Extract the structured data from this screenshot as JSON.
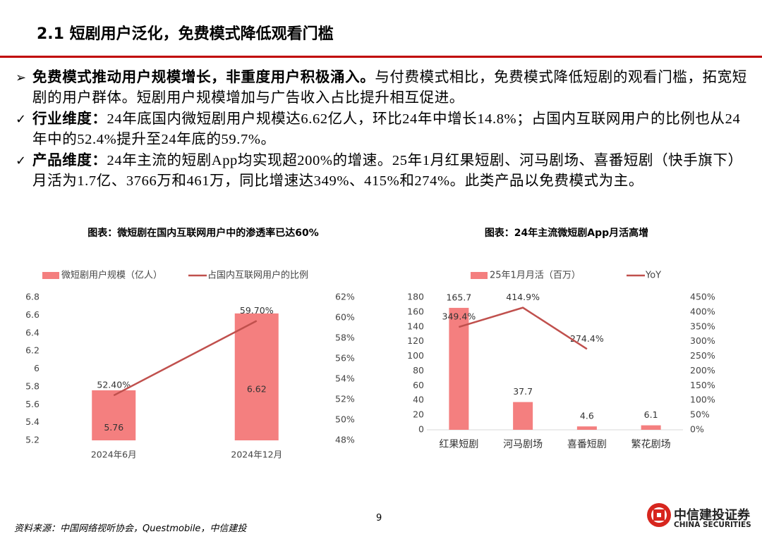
{
  "title": "2.1 短剧用户泛化，免费模式降低观看门槛",
  "bullets": [
    {
      "marker": "➢",
      "lead": "免费模式推动用户规模增长，非重度用户积极涌入。",
      "text": "与付费模式相比，免费模式降低短剧的观看门槛，拓宽短剧的用户群体。短剧用户规模增加与广告收入占比提升相互促进。"
    },
    {
      "marker": "✓",
      "lead": "行业维度：",
      "text": "24年底国内微短剧用户规模达6.62亿人，环比24年中增长14.8%；占国内互联网用户的比例也从24年中的52.4%提升至24年底的59.7%。"
    },
    {
      "marker": "✓",
      "lead": "产品维度：",
      "text": "24年主流的短剧App均实现超200%的增速。25年1月红果短剧、河马剧场、喜番短剧（快手旗下）月活为1.7亿、3766万和461万，同比增速达349%、415%和274%。此类产品以免费模式为主。"
    }
  ],
  "chart_data": [
    {
      "type": "bar-line",
      "title": "图表：微短剧在国内互联网用户中的渗透率已达60%",
      "categories": [
        "2024年6月",
        "2024年12月"
      ],
      "series": [
        {
          "name": "微短剧用户规模（亿人）",
          "color": "#f47f7f",
          "type": "bar",
          "values": [
            5.76,
            6.62
          ]
        },
        {
          "name": "占国内互联网用户的比例",
          "color": "#c0504d",
          "type": "line",
          "axis": "y2",
          "values": [
            52.4,
            59.7
          ],
          "value_labels": [
            "52.40%",
            "59.70%"
          ]
        }
      ],
      "ylim": [
        5.2,
        6.8
      ],
      "yticks": [
        5.2,
        5.4,
        5.6,
        5.8,
        6,
        6.2,
        6.4,
        6.6,
        6.8
      ],
      "y2lim": [
        48,
        62
      ],
      "y2ticks": [
        {
          "value": 48,
          "label": "48%"
        },
        {
          "value": 50,
          "label": "50%"
        },
        {
          "value": 52,
          "label": "52%"
        },
        {
          "value": 54,
          "label": "54%"
        },
        {
          "value": 56,
          "label": "56%"
        },
        {
          "value": 58,
          "label": "58%"
        },
        {
          "value": 60,
          "label": "60%"
        },
        {
          "value": 62,
          "label": "62%"
        }
      ],
      "legend": "top"
    },
    {
      "type": "bar-line",
      "title": "图表：24年主流微短剧App月活高增",
      "categories": [
        "红果短剧",
        "河马剧场",
        "喜番短剧",
        "繁花剧场"
      ],
      "series": [
        {
          "name": "25年1月月活（百万）",
          "color": "#f47f7f",
          "type": "bar",
          "values": [
            165.7,
            37.7,
            4.6,
            6.1
          ]
        },
        {
          "name": "YoY",
          "color": "#c0504d",
          "type": "line",
          "axis": "y2",
          "values": [
            349.4,
            414.9,
            274.4,
            null
          ],
          "value_labels": [
            "349.4%",
            "414.9%",
            "274.4%",
            null
          ]
        }
      ],
      "ylim": [
        0,
        180
      ],
      "yticks": [
        0,
        20,
        40,
        60,
        80,
        100,
        120,
        140,
        160,
        180
      ],
      "y2lim": [
        0,
        450
      ],
      "y2ticks": [
        {
          "value": 0,
          "label": "0%"
        },
        {
          "value": 50,
          "label": "50%"
        },
        {
          "value": 100,
          "label": "100%"
        },
        {
          "value": 150,
          "label": "150%"
        },
        {
          "value": 200,
          "label": "200%"
        },
        {
          "value": 250,
          "label": "250%"
        },
        {
          "value": 300,
          "label": "300%"
        },
        {
          "value": 350,
          "label": "350%"
        },
        {
          "value": 400,
          "label": "400%"
        },
        {
          "value": 450,
          "label": "450%"
        }
      ],
      "legend": "top"
    }
  ],
  "source": "资料来源：中国网络视听协会，Questmobile，中信建投",
  "page": "9",
  "logo": {
    "cn": "中信建投证券",
    "en": "CHINA SECURITIES"
  }
}
